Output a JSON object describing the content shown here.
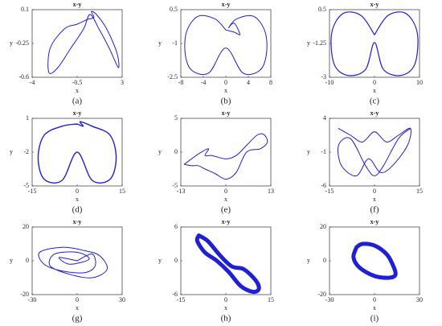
{
  "chart_data": [
    {
      "type": "line",
      "title": "x-y",
      "xlabel": "x",
      "ylabel": "y",
      "panel": "(a)",
      "xlim": [
        -4,
        3
      ],
      "ylim": [
        -0.6,
        0.1
      ],
      "xticks": [
        -4,
        -0.5,
        3
      ],
      "yticks": [
        -0.6,
        -0.25,
        0.1
      ],
      "x": [
        0.3,
        -0.5,
        -1.5,
        -2.6,
        -2.7,
        -2.0,
        -1.0,
        0,
        0.5,
        1.2,
        2.0,
        2.7,
        2.6,
        1.8,
        1.0,
        0.6,
        0.8,
        0.3
      ],
      "series": [
        {
          "color": "#1f1fd6",
          "width": 1,
          "values": [
            0.0,
            -0.05,
            -0.1,
            -0.3,
            -0.55,
            -0.5,
            -0.3,
            -0.1,
            0.05,
            -0.1,
            -0.3,
            -0.5,
            -0.35,
            -0.1,
            0.05,
            0.08,
            0.02,
            0.0
          ]
        }
      ]
    },
    {
      "type": "line",
      "title": "x-y",
      "xlabel": "x",
      "ylabel": "y",
      "panel": "(b)",
      "xlim": [
        -8,
        8
      ],
      "ylim": [
        -2.5,
        0.5
      ],
      "xticks": [
        -8,
        -4,
        0,
        4,
        8
      ],
      "yticks": [
        -2.5,
        -1,
        0.5
      ],
      "x": [
        0,
        -2,
        -5,
        -7,
        -7.2,
        -6,
        -3,
        0,
        3,
        6,
        7.2,
        7,
        5,
        2,
        0.5,
        1.5,
        2.5,
        1.5,
        0
      ],
      "series": [
        {
          "color": "#1f1fd6",
          "width": 1,
          "values": [
            -0.4,
            0.1,
            0.2,
            -0.5,
            -1.5,
            -2.2,
            -2.3,
            -1.2,
            -2.3,
            -2.2,
            -1.5,
            -0.5,
            0.2,
            0.1,
            -0.3,
            -0.1,
            -0.6,
            -0.5,
            -0.4
          ]
        }
      ]
    },
    {
      "type": "line",
      "title": "x-y",
      "xlabel": "x",
      "ylabel": "y",
      "panel": "(c)",
      "xlim": [
        -10,
        10
      ],
      "ylim": [
        -3,
        0.5
      ],
      "xticks": [
        -10,
        0,
        10
      ],
      "yticks": [
        -3,
        -1.25,
        0.5
      ],
      "x": [
        0,
        -3,
        -7,
        -9.5,
        -9,
        -6,
        -2,
        0,
        2,
        6,
        9,
        9.5,
        7,
        3,
        0
      ],
      "series": [
        {
          "color": "#1f1fd6",
          "width": 1.2,
          "values": [
            -0.8,
            0.2,
            0.3,
            -0.7,
            -2.3,
            -2.9,
            -2.6,
            -1.2,
            -2.6,
            -2.9,
            -2.3,
            -0.7,
            0.3,
            0.2,
            -0.8
          ]
        }
      ]
    },
    {
      "type": "line",
      "title": "x-y",
      "xlabel": "x",
      "ylabel": "y",
      "panel": "(d)",
      "xlim": [
        -15,
        15
      ],
      "ylim": [
        -5,
        1
      ],
      "xticks": [
        -15,
        0,
        15
      ],
      "yticks": [
        -5,
        -2,
        1
      ],
      "x": [
        0,
        -5,
        -11,
        -13,
        -11,
        -5,
        0,
        5,
        11,
        13,
        11,
        5,
        1,
        2,
        0
      ],
      "series": [
        {
          "color": "#1f1fd6",
          "width": 1.4,
          "values": [
            0.5,
            0.3,
            -0.5,
            -2.5,
            -4.4,
            -4.5,
            -2,
            -4.5,
            -4.4,
            -2.5,
            -0.5,
            0.3,
            0.7,
            0.3,
            0.5
          ]
        }
      ]
    },
    {
      "type": "line",
      "title": "x-y",
      "xlabel": "x",
      "ylabel": "y",
      "panel": "(e)",
      "xlim": [
        -13,
        13
      ],
      "ylim": [
        -5,
        5
      ],
      "xticks": [
        -13,
        0,
        13
      ],
      "yticks": [
        -5,
        0,
        5
      ],
      "x": [
        -12,
        -8,
        -5,
        -6,
        -4,
        0,
        3,
        6,
        9,
        11,
        12,
        10,
        6,
        3,
        0,
        -3,
        -6,
        -8,
        -10,
        -12
      ],
      "series": [
        {
          "color": "#1f1fd6",
          "width": 1,
          "values": [
            -1.8,
            -0.3,
            0.5,
            -0.5,
            -0.5,
            -1,
            -0.5,
            1,
            2.5,
            2.6,
            1.5,
            0.5,
            0,
            -3,
            -4,
            -3.2,
            -2.5,
            -2,
            -2,
            -1.8
          ]
        }
      ]
    },
    {
      "type": "line",
      "title": "x-y",
      "xlabel": "x",
      "ylabel": "y",
      "panel": "(f)",
      "xlim": [
        -15,
        15
      ],
      "ylim": [
        -6,
        4
      ],
      "xticks": [
        -15,
        0,
        15
      ],
      "yticks": [
        -6,
        -1,
        4
      ],
      "x": [
        -12,
        -8,
        -4,
        0,
        4,
        8,
        12,
        11,
        6,
        2,
        -2,
        -6,
        -11,
        -12,
        -8,
        -3,
        0,
        3,
        8,
        12
      ],
      "series": [
        {
          "color": "#1f1fd6",
          "width": 1,
          "values": [
            2.5,
            1.5,
            0.5,
            2,
            0.5,
            1.5,
            2.5,
            0,
            -3,
            -4,
            -2,
            -4.5,
            -3,
            0,
            1,
            -3,
            -4.5,
            -3,
            1,
            2.5
          ]
        }
      ]
    },
    {
      "type": "line",
      "title": "x-y",
      "xlabel": "x",
      "ylabel": "y",
      "panel": "(g)",
      "xlim": [
        -30,
        30
      ],
      "ylim": [
        -20,
        20
      ],
      "xticks": [
        -30,
        0,
        30
      ],
      "yticks": [
        -20,
        0,
        20
      ],
      "x": [
        0,
        10,
        12,
        5,
        -10,
        -22,
        -25,
        -10,
        5,
        15,
        20,
        10,
        -5,
        -18,
        -15,
        0,
        8,
        -5,
        -12,
        0
      ],
      "series": [
        {
          "color": "#1f1fd6",
          "width": 1,
          "values": [
            0,
            4,
            -3,
            -7,
            -6,
            -2,
            5,
            8,
            6,
            3,
            -5,
            -10,
            -8,
            -3,
            4,
            5,
            1,
            -2,
            2,
            0
          ]
        }
      ]
    },
    {
      "type": "line",
      "title": "x-y",
      "xlabel": "x",
      "ylabel": "y",
      "panel": "(h)",
      "xlim": [
        -15,
        15
      ],
      "ylim": [
        -6,
        6
      ],
      "xticks": [
        -15,
        0,
        15
      ],
      "yticks": [
        -6,
        0,
        6
      ],
      "x": [
        -9,
        -6,
        -2,
        2,
        6,
        10,
        11,
        9,
        5,
        1,
        -3,
        -7,
        -9.5,
        -9
      ],
      "series": [
        {
          "color": "#1f1fd6",
          "width": 5,
          "values": [
            4.5,
            3.5,
            1,
            -1,
            -1.5,
            -3.5,
            -5,
            -5.5,
            -4.5,
            -2,
            0,
            1.5,
            3.5,
            4.5
          ]
        }
      ]
    },
    {
      "type": "line",
      "title": "x-y",
      "xlabel": "x",
      "ylabel": "y",
      "panel": "(i)",
      "xlim": [
        -30,
        30
      ],
      "ylim": [
        -20,
        20
      ],
      "xticks": [
        -30,
        0,
        30
      ],
      "yticks": [
        -20,
        0,
        20
      ],
      "x": [
        -12,
        -8,
        0,
        8,
        12,
        14,
        10,
        0,
        -10,
        -14,
        -12
      ],
      "series": [
        {
          "color": "#1f1fd6",
          "width": 5,
          "values": [
            8,
            10,
            9,
            4,
            -2,
            -8,
            -10,
            -9,
            -4,
            2,
            8
          ]
        }
      ]
    }
  ]
}
